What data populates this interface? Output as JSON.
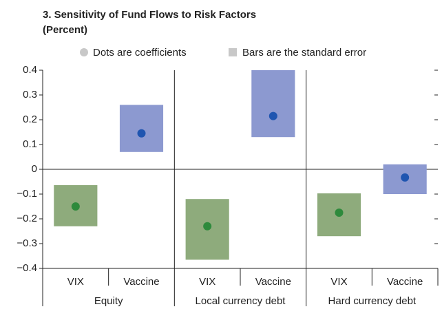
{
  "chart_data": {
    "type": "dot_range",
    "title": "3. Sensitivity of Fund Flows to Risk Factors",
    "subtitle": "(Percent)",
    "legend": [
      "Dots are coefficients",
      "Bars are the standard error"
    ],
    "categories": [
      "VIX",
      "Vaccine",
      "VIX",
      "Vaccine",
      "VIX",
      "Vaccine"
    ],
    "groups": [
      "Equity",
      "Local currency debt",
      "Hard currency debt"
    ],
    "values": [
      -0.15,
      0.145,
      -0.23,
      0.215,
      -0.175,
      -0.033
    ],
    "low": [
      -0.23,
      0.07,
      -0.365,
      0.13,
      -0.27,
      -0.1
    ],
    "high": [
      -0.064,
      0.26,
      -0.12,
      0.4,
      -0.097,
      0.02
    ],
    "box_colors": [
      "#8eab7c",
      "#8c99d0",
      "#8eab7c",
      "#8c99d0",
      "#8eab7c",
      "#8c99d0"
    ],
    "dot_colors": [
      "#2e8a3c",
      "#1f55b0",
      "#2e8a3c",
      "#1f55b0",
      "#2e8a3c",
      "#1f55b0"
    ],
    "ylim": [
      -0.4,
      0.4
    ],
    "yticks": [
      {
        "value": -0.4,
        "label": "−0.4"
      },
      {
        "value": -0.3,
        "label": "−0.3"
      },
      {
        "value": -0.2,
        "label": "−0.2"
      },
      {
        "value": -0.1,
        "label": "−0.1"
      },
      0,
      0.1,
      0.2,
      0.3,
      0.4
    ]
  }
}
